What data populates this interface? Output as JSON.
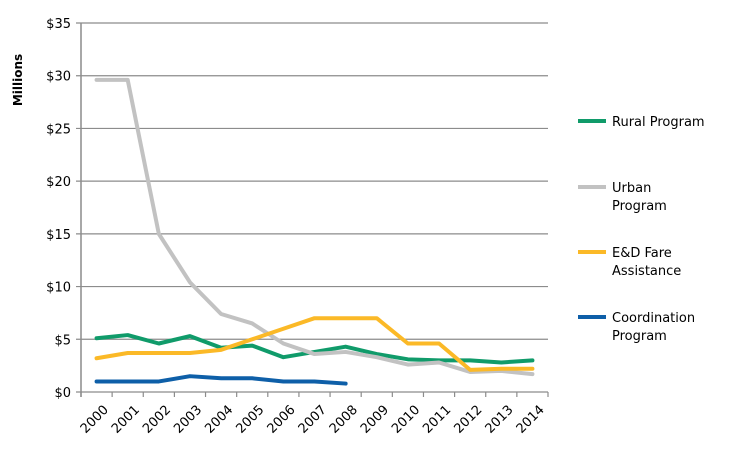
{
  "chart_data": {
    "type": "line",
    "title": "",
    "xlabel": "",
    "ylabel": "Millions",
    "ylim": [
      0,
      35
    ],
    "yticks": [
      "$0",
      "$5",
      "$10",
      "$15",
      "$20",
      "$25",
      "$30",
      "$35"
    ],
    "ytick_values": [
      0,
      5,
      10,
      15,
      20,
      25,
      30,
      35
    ],
    "grid": true,
    "legend_position": "right",
    "categories": [
      "2000",
      "2001",
      "2002",
      "2003",
      "2004",
      "2005",
      "2006",
      "2007",
      "2008",
      "2009",
      "2010",
      "2011",
      "2012",
      "2013",
      "2014"
    ],
    "series": [
      {
        "name": "Rural Program",
        "legend_lines": [
          "Rural Program"
        ],
        "color": "#109b6a",
        "values": [
          5.1,
          5.4,
          4.6,
          5.3,
          4.2,
          4.4,
          3.3,
          3.8,
          4.3,
          3.6,
          3.1,
          3.0,
          3.0,
          2.8,
          3.0
        ]
      },
      {
        "name": "Urban Program",
        "legend_lines": [
          "Urban",
          "Program"
        ],
        "color": "#c2c2c2",
        "values": [
          29.6,
          29.6,
          15.0,
          10.4,
          7.4,
          6.5,
          4.6,
          3.6,
          3.8,
          3.3,
          2.6,
          2.8,
          1.9,
          2.0,
          1.7
        ]
      },
      {
        "name": "E&D Fare Assistance",
        "legend_lines": [
          "E&D Fare",
          "Assistance"
        ],
        "color": "#fbb927",
        "values": [
          3.2,
          3.7,
          3.7,
          3.7,
          4.0,
          5.0,
          6.0,
          7.0,
          7.0,
          7.0,
          4.6,
          4.6,
          2.1,
          2.2,
          2.2
        ]
      },
      {
        "name": "Coordination Program",
        "legend_lines": [
          "Coordination",
          "Program"
        ],
        "color": "#0e5fa8",
        "values": [
          1.0,
          1.0,
          1.0,
          1.5,
          1.3,
          1.3,
          1.0,
          1.0,
          0.8,
          null,
          null,
          null,
          null,
          null,
          null
        ]
      }
    ]
  }
}
